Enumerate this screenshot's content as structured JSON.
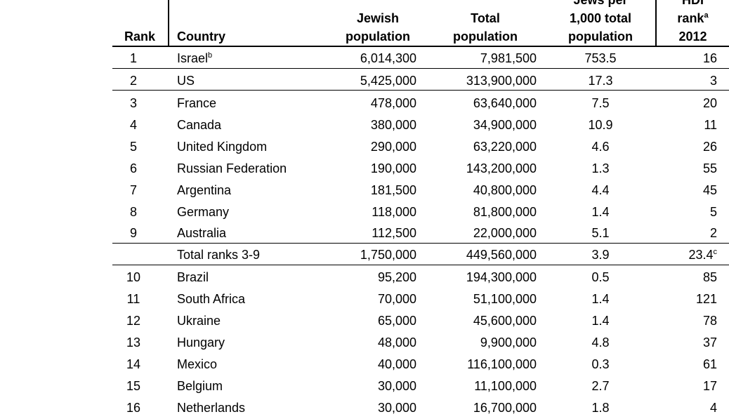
{
  "headers": {
    "rank": "Rank",
    "country": "Country",
    "jewish": [
      "Jewish",
      "population"
    ],
    "total": [
      "Total",
      "population"
    ],
    "per1000": [
      "Jews per",
      "1,000 total",
      "population"
    ],
    "hdi": [
      "HDI",
      "rank",
      "2012"
    ],
    "hdi_sup": "a"
  },
  "rows": [
    {
      "rank": "1",
      "country": "Israel",
      "sup": "b",
      "jewish": "6,014,300",
      "total": "7,981,500",
      "per1000": "753.5",
      "hdi": "16"
    },
    {
      "rank": "2",
      "country": "US",
      "jewish": "5,425,000",
      "total": "313,900,000",
      "per1000": "17.3",
      "hdi": "3"
    },
    {
      "rank": "3",
      "country": "France",
      "jewish": "478,000",
      "total": "63,640,000",
      "per1000": "7.5",
      "hdi": "20"
    },
    {
      "rank": "4",
      "country": "Canada",
      "jewish": "380,000",
      "total": "34,900,000",
      "per1000": "10.9",
      "hdi": "11"
    },
    {
      "rank": "5",
      "country": "United Kingdom",
      "jewish": "290,000",
      "total": "63,220,000",
      "per1000": "4.6",
      "hdi": "26"
    },
    {
      "rank": "6",
      "country": "Russian Federation",
      "jewish": "190,000",
      "total": "143,200,000",
      "per1000": "1.3",
      "hdi": "55"
    },
    {
      "rank": "7",
      "country": "Argentina",
      "jewish": "181,500",
      "total": "40,800,000",
      "per1000": "4.4",
      "hdi": "45"
    },
    {
      "rank": "8",
      "country": "Germany",
      "jewish": "118,000",
      "total": "81,800,000",
      "per1000": "1.4",
      "hdi": "5"
    },
    {
      "rank": "9",
      "country": "Australia",
      "jewish": "112,500",
      "total": "22,000,000",
      "per1000": "5.1",
      "hdi": "2"
    },
    {
      "rank": "",
      "country": "Total ranks 3-9",
      "jewish": "1,750,000",
      "total": "449,560,000",
      "per1000": "3.9",
      "hdi": "23.4",
      "hdi_sup": "c"
    },
    {
      "rank": "10",
      "country": "Brazil",
      "jewish": "95,200",
      "total": "194,300,000",
      "per1000": "0.5",
      "hdi": "85"
    },
    {
      "rank": "11",
      "country": "South Africa",
      "jewish": "70,000",
      "total": "51,100,000",
      "per1000": "1.4",
      "hdi": "121"
    },
    {
      "rank": "12",
      "country": "Ukraine",
      "jewish": "65,000",
      "total": "45,600,000",
      "per1000": "1.4",
      "hdi": "78"
    },
    {
      "rank": "13",
      "country": "Hungary",
      "jewish": "48,000",
      "total": "9,900,000",
      "per1000": "4.8",
      "hdi": "37"
    },
    {
      "rank": "14",
      "country": "Mexico",
      "jewish": "40,000",
      "total": "116,100,000",
      "per1000": "0.3",
      "hdi": "61"
    },
    {
      "rank": "15",
      "country": "Belgium",
      "jewish": "30,000",
      "total": "11,100,000",
      "per1000": "2.7",
      "hdi": "17"
    },
    {
      "rank": "16",
      "country": "Netherlands",
      "jewish": "30,000",
      "total": "16,700,000",
      "per1000": "1.8",
      "hdi": "4"
    }
  ]
}
